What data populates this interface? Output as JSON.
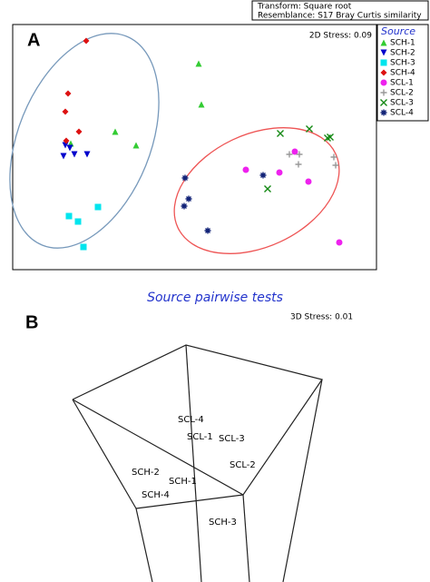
{
  "panel_a": {
    "label": "A",
    "transform": "Transform: Square root",
    "resemblance": "Resemblance: S17 Bray Curtis similarity",
    "stress": "2D Stress: 0.09"
  },
  "chart_data": {
    "type": "scatter",
    "legend_title": "Source",
    "legend": "upper right outside",
    "xlim": [
      0,
      401
    ],
    "ylim": [
      0,
      270
    ],
    "series": [
      {
        "name": "SCH-1",
        "color": "#33cc33",
        "marker": "triangle-up",
        "x": [
          205,
          208,
          113,
          136,
          64
        ],
        "y": [
          227,
          182,
          152,
          137,
          139
        ]
      },
      {
        "name": "SCH-2",
        "color": "#0000cc",
        "marker": "triangle-down",
        "x": [
          58,
          63,
          56,
          68,
          82
        ],
        "y": [
          137,
          134,
          125,
          127,
          127
        ]
      },
      {
        "name": "SCH-3",
        "color": "#00e5ee",
        "marker": "square",
        "x": [
          94,
          72,
          62,
          78
        ],
        "y": [
          69,
          53,
          59,
          25
        ]
      },
      {
        "name": "SCH-4",
        "color": "#dd1111",
        "marker": "diamond",
        "x": [
          81,
          61,
          58,
          73,
          59
        ],
        "y": [
          252,
          194,
          174,
          152,
          142
        ]
      },
      {
        "name": "SCL-1",
        "color": "#ee22ee",
        "marker": "circle",
        "x": [
          257,
          311,
          294,
          326,
          360
        ],
        "y": [
          110,
          130,
          107,
          97,
          30
        ]
      },
      {
        "name": "SCL-2",
        "color": "#999999",
        "marker": "plus",
        "x": [
          305,
          316,
          315,
          354,
          356
        ],
        "y": [
          127,
          127,
          116,
          124,
          115
        ]
      },
      {
        "name": "SCL-3",
        "color": "#118811",
        "marker": "cross",
        "x": [
          295,
          327,
          347,
          350,
          281
        ],
        "y": [
          150,
          155,
          145,
          146,
          89
        ]
      },
      {
        "name": "SCL-4",
        "color": "#112277",
        "marker": "asterisk",
        "x": [
          190,
          194,
          189,
          215,
          276
        ],
        "y": [
          101,
          78,
          70,
          43,
          104
        ]
      }
    ]
  },
  "caption": "Source pairwise tests",
  "panel_b": {
    "label": "B",
    "stress": "3D Stress: 0.01",
    "labels": [
      "SCL-4",
      "SCL-1",
      "SCL-3",
      "SCL-2",
      "SCH-2",
      "SCH-1",
      "SCH-4",
      "SCH-3"
    ]
  }
}
